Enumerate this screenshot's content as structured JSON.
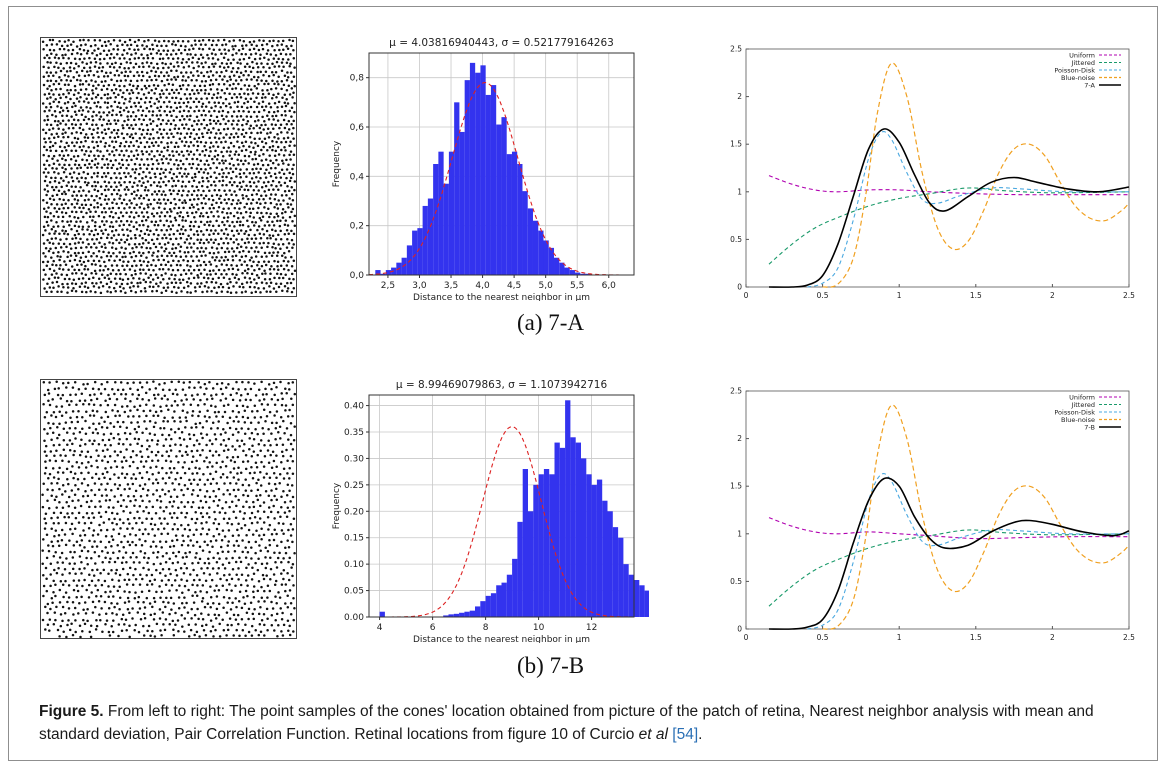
{
  "figure": {
    "rows": [
      {
        "label": "(a)  7-A",
        "hist": {
          "title": "μ = 4.03816940443,  σ = 0.521779164263",
          "xlabel": "Distance to the nearest neighbor in μm",
          "ylabel": "Frequency",
          "xticks": [
            "2,5",
            "3,0",
            "3,5",
            "4,0",
            "4,5",
            "5,0",
            "5,5",
            "6,0"
          ],
          "yticks": [
            "0,0",
            "0,2",
            "0,4",
            "0,6",
            "0,8"
          ]
        },
        "pcf": {
          "legend": [
            "Uniform",
            "Jittered",
            "Poisson-Disk",
            "Blue-noise",
            "7-A"
          ],
          "xticks": [
            "0",
            "0.5",
            "1",
            "1.5",
            "2",
            "2.5"
          ],
          "yticks": [
            "0",
            "0.5",
            "1",
            "1.5",
            "2",
            "2.5"
          ]
        }
      },
      {
        "label": "(b)  7-B",
        "hist": {
          "title": "μ = 8.99469079863,  σ = 1.1073942716",
          "xlabel": "Distance to the nearest neighbor in μm",
          "ylabel": "Frequency",
          "xticks": [
            "4",
            "6",
            "8",
            "10",
            "12"
          ],
          "yticks": [
            "0.00",
            "0.05",
            "0.10",
            "0.15",
            "0.20",
            "0.25",
            "0.30",
            "0.35",
            "0.40"
          ]
        },
        "pcf": {
          "legend": [
            "Uniform",
            "Jittered",
            "Poisson-Disk",
            "Blue-noise",
            "7-B"
          ],
          "xticks": [
            "0",
            "0.5",
            "1",
            "1.5",
            "2",
            "2.5"
          ],
          "yticks": [
            "0",
            "0.5",
            "1",
            "1.5",
            "2",
            "2.5"
          ]
        }
      }
    ],
    "caption": {
      "label": "Figure 5.",
      "text": " From left to right: The point samples of the cones' location obtained from picture of the patch of retina, Nearest neighbor analysis with mean and standard deviation, Pair Correlation Function. Retinal locations from figure 10 of Curcio ",
      "etal": "et al",
      "ref": "[54]",
      "end": "."
    }
  },
  "colors": {
    "bar": "#3333ee",
    "fit": "#dd2222",
    "uniform": "#b000b0",
    "jittered": "#1a9a6a",
    "poisson": "#4aa8e0",
    "bluenoise": "#f0a020",
    "measured": "#000000"
  },
  "chart_data": [
    {
      "type": "bar",
      "id": "hist-7A",
      "title": "μ = 4.03816940443,  σ = 0.521779164263",
      "xlabel": "Distance to the nearest neighbor in μm",
      "ylabel": "Frequency",
      "xlim": [
        2.2,
        6.4
      ],
      "ylim": [
        0,
        0.9
      ],
      "bin_start": 2.3,
      "bin_width": 0.0833,
      "values": [
        0.02,
        0.005,
        0.02,
        0.03,
        0.05,
        0.07,
        0.12,
        0.18,
        0.19,
        0.28,
        0.31,
        0.45,
        0.5,
        0.37,
        0.5,
        0.7,
        0.58,
        0.79,
        0.86,
        0.82,
        0.85,
        0.73,
        0.77,
        0.61,
        0.64,
        0.49,
        0.5,
        0.45,
        0.34,
        0.27,
        0.22,
        0.18,
        0.14,
        0.11,
        0.07,
        0.05,
        0.03,
        0.02,
        0.01,
        0.005,
        0.005
      ],
      "fit": {
        "mean": 4.03816940443,
        "sd": 0.521779164263,
        "peak": 0.78
      }
    },
    {
      "type": "line",
      "id": "pcf-7A",
      "xlim": [
        0,
        2.5
      ],
      "ylim": [
        0,
        2.5
      ],
      "series": [
        {
          "name": "Uniform",
          "x": [
            0.15,
            0.3,
            0.45,
            0.6,
            0.8,
            1.0,
            1.2,
            1.5,
            1.8,
            2.1,
            2.5
          ],
          "y": [
            1.17,
            1.08,
            1.02,
            1.0,
            1.02,
            1.02,
            1.0,
            0.98,
            0.97,
            0.97,
            0.97
          ]
        },
        {
          "name": "Jittered",
          "x": [
            0.15,
            0.3,
            0.45,
            0.6,
            0.8,
            1.0,
            1.2,
            1.45,
            1.7,
            2.0,
            2.5
          ],
          "y": [
            0.24,
            0.45,
            0.62,
            0.73,
            0.85,
            0.93,
            0.98,
            1.04,
            1.01,
            0.99,
            1.0
          ]
        },
        {
          "name": "Poisson-Disk",
          "x": [
            0.4,
            0.5,
            0.6,
            0.7,
            0.8,
            0.88,
            0.95,
            1.05,
            1.15,
            1.25,
            1.4,
            1.6,
            1.8,
            2.1,
            2.5
          ],
          "y": [
            0.0,
            0.04,
            0.2,
            0.7,
            1.35,
            1.62,
            1.55,
            1.2,
            0.92,
            0.88,
            0.96,
            1.04,
            1.03,
            1.0,
            1.0
          ]
        },
        {
          "name": "Blue-noise",
          "x": [
            0.5,
            0.6,
            0.7,
            0.78,
            0.86,
            0.95,
            1.05,
            1.15,
            1.25,
            1.35,
            1.45,
            1.55,
            1.65,
            1.75,
            1.85,
            1.95,
            2.05,
            2.15,
            2.25,
            2.35,
            2.45,
            2.5
          ],
          "y": [
            0.0,
            0.03,
            0.3,
            0.95,
            1.85,
            2.35,
            2.0,
            1.2,
            0.62,
            0.4,
            0.48,
            0.8,
            1.2,
            1.45,
            1.5,
            1.38,
            1.1,
            0.85,
            0.72,
            0.7,
            0.8,
            0.88
          ]
        },
        {
          "name": "7-A",
          "x": [
            0.15,
            0.3,
            0.4,
            0.5,
            0.6,
            0.7,
            0.8,
            0.9,
            1.0,
            1.1,
            1.2,
            1.3,
            1.45,
            1.6,
            1.75,
            1.9,
            2.1,
            2.3,
            2.5
          ],
          "y": [
            0.0,
            0.0,
            0.02,
            0.12,
            0.45,
            0.95,
            1.45,
            1.66,
            1.52,
            1.18,
            0.88,
            0.8,
            0.95,
            1.1,
            1.15,
            1.1,
            1.03,
            1.0,
            1.05
          ]
        }
      ]
    },
    {
      "type": "bar",
      "id": "hist-7B",
      "title": "μ = 8.99469079863,  σ = 1.1073942716",
      "xlabel": "Distance to the nearest neighbor in μm",
      "ylabel": "Frequency",
      "xlim": [
        3.6,
        13.6
      ],
      "ylim": [
        0,
        0.42
      ],
      "bin_start": 4.0,
      "bin_width": 0.2,
      "values": [
        0.01,
        0.0,
        0.0,
        0.0,
        0.0,
        0.0,
        0.0,
        0.0,
        0.0,
        0.0,
        0.0,
        0.0,
        0.003,
        0.005,
        0.006,
        0.008,
        0.01,
        0.012,
        0.02,
        0.03,
        0.04,
        0.045,
        0.06,
        0.065,
        0.08,
        0.11,
        0.18,
        0.28,
        0.2,
        0.25,
        0.27,
        0.28,
        0.27,
        0.33,
        0.32,
        0.41,
        0.34,
        0.33,
        0.3,
        0.27,
        0.25,
        0.26,
        0.22,
        0.2,
        0.17,
        0.15,
        0.1,
        0.08,
        0.07,
        0.06,
        0.05,
        0.04,
        0.02,
        0.02,
        0.01,
        0.01,
        0.005,
        0.003
      ],
      "fit": {
        "mean": 8.99469079863,
        "sd": 1.1073942716,
        "peak": 0.36
      }
    },
    {
      "type": "line",
      "id": "pcf-7B",
      "xlim": [
        0,
        2.5
      ],
      "ylim": [
        0,
        2.5
      ],
      "series": [
        {
          "name": "Uniform",
          "x": [
            0.15,
            0.3,
            0.45,
            0.6,
            0.8,
            1.0,
            1.2,
            1.5,
            1.8,
            2.1,
            2.5
          ],
          "y": [
            1.17,
            1.08,
            1.02,
            1.0,
            1.02,
            1.0,
            0.98,
            0.95,
            0.96,
            0.97,
            0.97
          ]
        },
        {
          "name": "Jittered",
          "x": [
            0.15,
            0.3,
            0.45,
            0.6,
            0.8,
            1.0,
            1.2,
            1.45,
            1.7,
            2.0,
            2.5
          ],
          "y": [
            0.24,
            0.45,
            0.62,
            0.73,
            0.85,
            0.93,
            0.98,
            1.04,
            1.01,
            0.99,
            1.0
          ]
        },
        {
          "name": "Poisson-Disk",
          "x": [
            0.4,
            0.5,
            0.6,
            0.7,
            0.8,
            0.88,
            0.95,
            1.05,
            1.15,
            1.25,
            1.4,
            1.6,
            1.8,
            2.1,
            2.5
          ],
          "y": [
            0.0,
            0.04,
            0.2,
            0.7,
            1.35,
            1.62,
            1.55,
            1.2,
            0.92,
            0.88,
            0.96,
            1.04,
            1.03,
            1.0,
            1.0
          ]
        },
        {
          "name": "Blue-noise",
          "x": [
            0.5,
            0.6,
            0.7,
            0.78,
            0.86,
            0.95,
            1.05,
            1.15,
            1.25,
            1.35,
            1.45,
            1.55,
            1.65,
            1.75,
            1.85,
            1.95,
            2.05,
            2.15,
            2.25,
            2.35,
            2.45,
            2.5
          ],
          "y": [
            0.0,
            0.03,
            0.3,
            0.95,
            1.85,
            2.35,
            2.0,
            1.2,
            0.62,
            0.4,
            0.48,
            0.8,
            1.2,
            1.45,
            1.5,
            1.38,
            1.1,
            0.85,
            0.72,
            0.7,
            0.8,
            0.88
          ]
        },
        {
          "name": "7-B",
          "x": [
            0.15,
            0.3,
            0.4,
            0.5,
            0.6,
            0.7,
            0.8,
            0.9,
            1.0,
            1.1,
            1.2,
            1.3,
            1.45,
            1.6,
            1.75,
            1.85,
            2.0,
            2.2,
            2.4,
            2.5
          ],
          "y": [
            0.0,
            0.0,
            0.02,
            0.1,
            0.4,
            0.9,
            1.35,
            1.58,
            1.5,
            1.18,
            0.95,
            0.85,
            0.88,
            1.02,
            1.12,
            1.14,
            1.1,
            1.02,
            0.98,
            1.03
          ]
        }
      ]
    }
  ]
}
